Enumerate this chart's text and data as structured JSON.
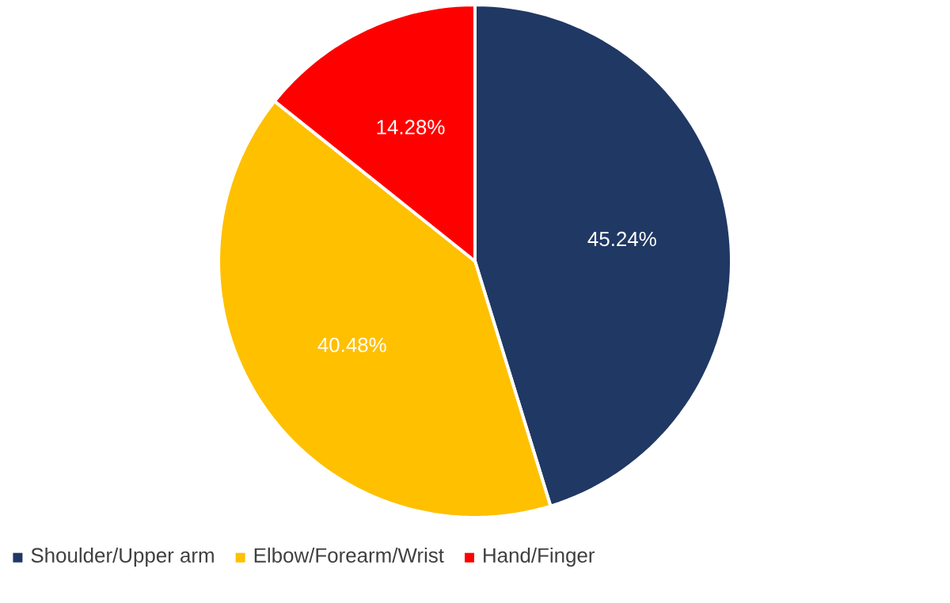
{
  "chart_data": {
    "type": "pie",
    "categories": [
      "Shoulder/Upper arm",
      "Elbow/Forearm/Wrist",
      "Hand/Finger"
    ],
    "values": [
      45.24,
      40.48,
      14.28
    ],
    "colors": [
      "#203864",
      "#ffc000",
      "#ff0000"
    ],
    "value_labels": [
      "45.24%",
      "40.48%",
      "14.28%"
    ],
    "legend": "bottom"
  }
}
